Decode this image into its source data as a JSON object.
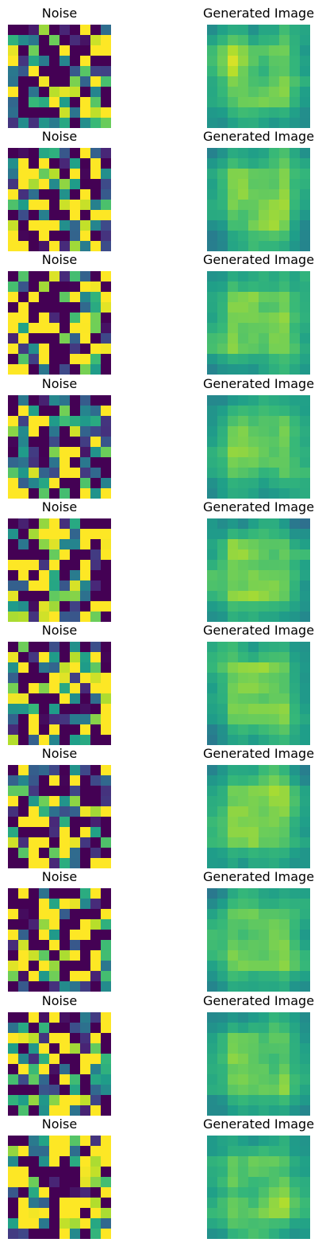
{
  "figure": {
    "colormap": "viridis",
    "value_range": [
      0,
      1
    ],
    "panels": [
      {
        "noise_label": "Noise",
        "generated_label": "Generated Image"
      },
      {
        "noise_label": "Noise",
        "generated_label": "Generated Image"
      },
      {
        "noise_label": "Noise",
        "generated_label": "Generated Image"
      },
      {
        "noise_label": "Noise",
        "generated_label": "Generated Image"
      },
      {
        "noise_label": "Noise",
        "generated_label": "Generated Image"
      },
      {
        "noise_label": "Noise",
        "generated_label": "Generated Image"
      },
      {
        "noise_label": "Noise",
        "generated_label": "Generated Image"
      },
      {
        "noise_label": "Noise",
        "generated_label": "Generated Image"
      },
      {
        "noise_label": "Noise",
        "generated_label": "Generated Image"
      },
      {
        "noise_label": "Noise",
        "generated_label": "Generated Image"
      }
    ]
  },
  "chart_data": {
    "type": "heatmap",
    "colormap": "viridis",
    "grid_size": [
      10,
      10
    ],
    "panels_per_row": 2,
    "rows": 10,
    "note": "Each row pairs a random-noise heatmap with a generated-image heatmap; cell values are in [0,1]."
  }
}
